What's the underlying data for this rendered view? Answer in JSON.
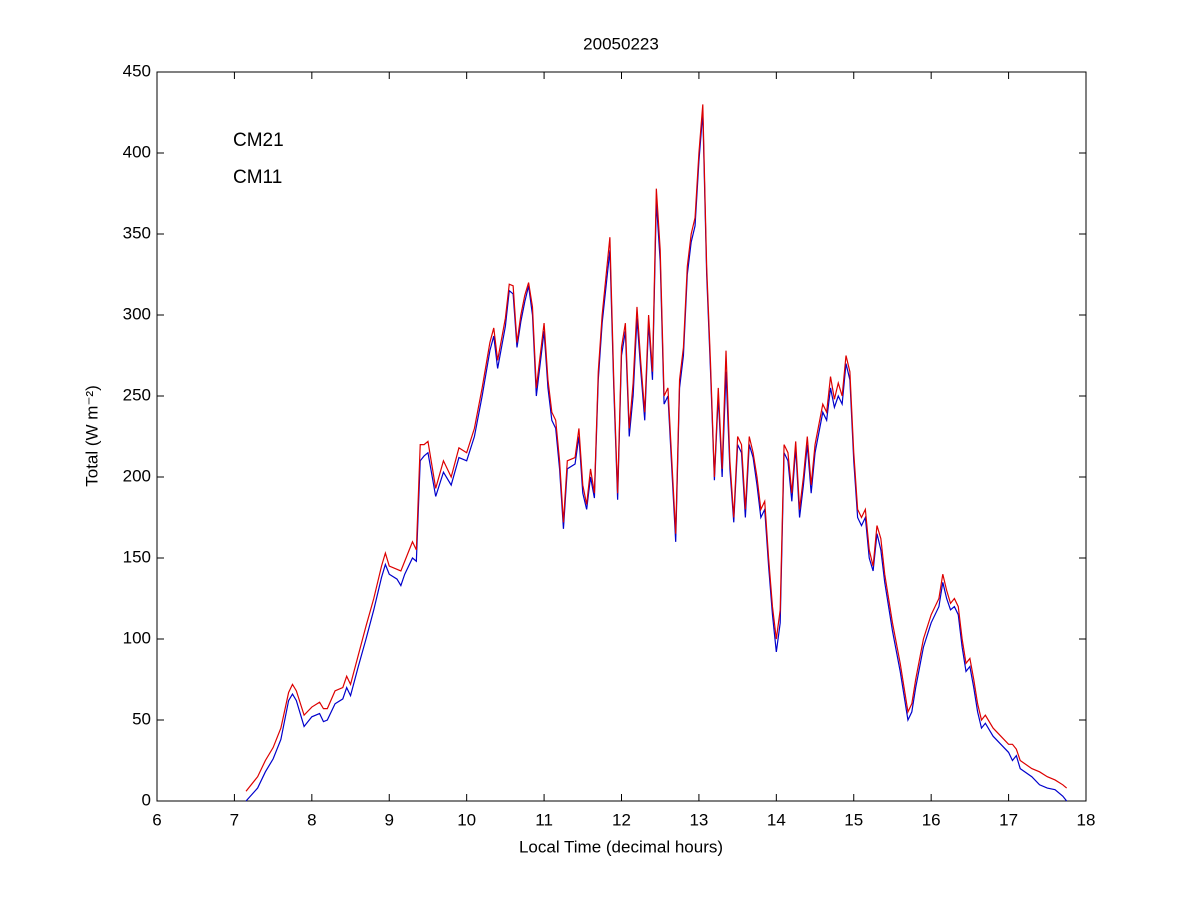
{
  "chart_data": {
    "type": "line",
    "title": "20050223",
    "xlabel": "Local Time (decimal hours)",
    "ylabel": "Total (W m⁻²)",
    "xlim": [
      6,
      18
    ],
    "xticks": [
      6,
      7,
      8,
      9,
      10,
      11,
      12,
      13,
      14,
      15,
      16,
      17,
      18
    ],
    "ylim": [
      0,
      450
    ],
    "yticks": [
      0,
      50,
      100,
      150,
      200,
      250,
      300,
      350,
      400,
      450
    ],
    "grid": false,
    "legend": "upper left",
    "x": [
      7.15,
      7.3,
      7.4,
      7.5,
      7.6,
      7.7,
      7.75,
      7.8,
      7.9,
      8.0,
      8.1,
      8.15,
      8.2,
      8.3,
      8.4,
      8.45,
      8.5,
      8.6,
      8.7,
      8.8,
      8.9,
      8.95,
      9.0,
      9.1,
      9.15,
      9.2,
      9.3,
      9.35,
      9.4,
      9.45,
      9.5,
      9.6,
      9.7,
      9.8,
      9.9,
      10.0,
      10.1,
      10.2,
      10.3,
      10.35,
      10.4,
      10.5,
      10.55,
      10.6,
      10.65,
      10.7,
      10.75,
      10.8,
      10.85,
      10.9,
      10.95,
      11.0,
      11.05,
      11.1,
      11.15,
      11.2,
      11.25,
      11.3,
      11.4,
      11.45,
      11.5,
      11.55,
      11.6,
      11.65,
      11.7,
      11.75,
      11.85,
      11.9,
      11.95,
      12.0,
      12.05,
      12.1,
      12.15,
      12.2,
      12.25,
      12.3,
      12.35,
      12.4,
      12.45,
      12.5,
      12.55,
      12.6,
      12.7,
      12.75,
      12.8,
      12.85,
      12.9,
      12.95,
      13.0,
      13.05,
      13.1,
      13.15,
      13.2,
      13.25,
      13.3,
      13.35,
      13.4,
      13.45,
      13.5,
      13.55,
      13.6,
      13.65,
      13.7,
      13.75,
      13.8,
      13.85,
      13.9,
      13.95,
      14.0,
      14.05,
      14.1,
      14.15,
      14.2,
      14.25,
      14.3,
      14.35,
      14.4,
      14.45,
      14.5,
      14.6,
      14.65,
      14.7,
      14.75,
      14.8,
      14.85,
      14.9,
      14.95,
      15.0,
      15.05,
      15.1,
      15.15,
      15.2,
      15.25,
      15.3,
      15.35,
      15.4,
      15.5,
      15.6,
      15.7,
      15.75,
      15.8,
      15.9,
      16.0,
      16.1,
      16.15,
      16.2,
      16.25,
      16.3,
      16.35,
      16.4,
      16.45,
      16.5,
      16.55,
      16.6,
      16.65,
      16.7,
      16.8,
      16.9,
      17.0,
      17.05,
      17.1,
      17.15,
      17.3,
      17.4,
      17.5,
      17.6,
      17.7,
      17.75
    ],
    "series": [
      {
        "name": "CM21",
        "color": "#0000cc",
        "values": [
          0,
          8,
          18,
          26,
          38,
          62,
          66,
          62,
          46,
          52,
          54,
          49,
          50,
          60,
          63,
          70,
          65,
          83,
          100,
          118,
          138,
          146,
          140,
          137,
          133,
          140,
          150,
          148,
          210,
          213,
          215,
          188,
          203,
          195,
          212,
          210,
          225,
          250,
          278,
          287,
          267,
          293,
          315,
          313,
          280,
          296,
          308,
          318,
          300,
          250,
          270,
          290,
          255,
          235,
          230,
          205,
          168,
          205,
          208,
          225,
          190,
          180,
          200,
          187,
          260,
          295,
          340,
          255,
          186,
          275,
          290,
          225,
          250,
          298,
          265,
          235,
          295,
          260,
          370,
          333,
          245,
          250,
          160,
          255,
          275,
          325,
          345,
          355,
          395,
          425,
          325,
          265,
          198,
          250,
          200,
          265,
          205,
          172,
          220,
          215,
          175,
          220,
          212,
          195,
          175,
          180,
          145,
          115,
          92,
          110,
          215,
          210,
          185,
          218,
          175,
          195,
          220,
          190,
          215,
          240,
          235,
          255,
          243,
          250,
          245,
          270,
          260,
          210,
          175,
          170,
          175,
          150,
          142,
          165,
          155,
          135,
          105,
          80,
          50,
          55,
          70,
          95,
          110,
          120,
          135,
          125,
          118,
          120,
          115,
          95,
          80,
          83,
          70,
          55,
          45,
          48,
          40,
          35,
          30,
          25,
          28,
          20,
          15,
          10,
          8,
          7,
          3,
          0
        ]
      },
      {
        "name": "CM11",
        "color": "#dd0000",
        "values": [
          6,
          15,
          25,
          33,
          45,
          67,
          72,
          68,
          53,
          58,
          61,
          57,
          57,
          68,
          70,
          77,
          72,
          90,
          108,
          125,
          145,
          153,
          145,
          143,
          142,
          148,
          160,
          155,
          220,
          220,
          222,
          193,
          210,
          200,
          218,
          215,
          230,
          255,
          283,
          292,
          272,
          298,
          319,
          318,
          283,
          300,
          312,
          320,
          305,
          255,
          275,
          295,
          260,
          240,
          235,
          210,
          172,
          210,
          212,
          230,
          195,
          183,
          205,
          190,
          265,
          300,
          348,
          260,
          190,
          280,
          295,
          230,
          258,
          305,
          270,
          240,
          300,
          265,
          378,
          340,
          250,
          255,
          165,
          260,
          280,
          330,
          350,
          360,
          400,
          430,
          330,
          270,
          200,
          255,
          205,
          278,
          210,
          175,
          225,
          220,
          180,
          225,
          215,
          200,
          180,
          185,
          150,
          120,
          100,
          118,
          220,
          215,
          190,
          222,
          180,
          200,
          225,
          195,
          220,
          245,
          240,
          262,
          248,
          258,
          250,
          275,
          265,
          215,
          180,
          175,
          180,
          155,
          145,
          170,
          162,
          140,
          110,
          85,
          55,
          60,
          75,
          100,
          115,
          125,
          140,
          130,
          122,
          125,
          120,
          100,
          85,
          88,
          75,
          60,
          50,
          53,
          45,
          40,
          35,
          35,
          32,
          25,
          20,
          18,
          15,
          13,
          10,
          8
        ]
      }
    ]
  }
}
